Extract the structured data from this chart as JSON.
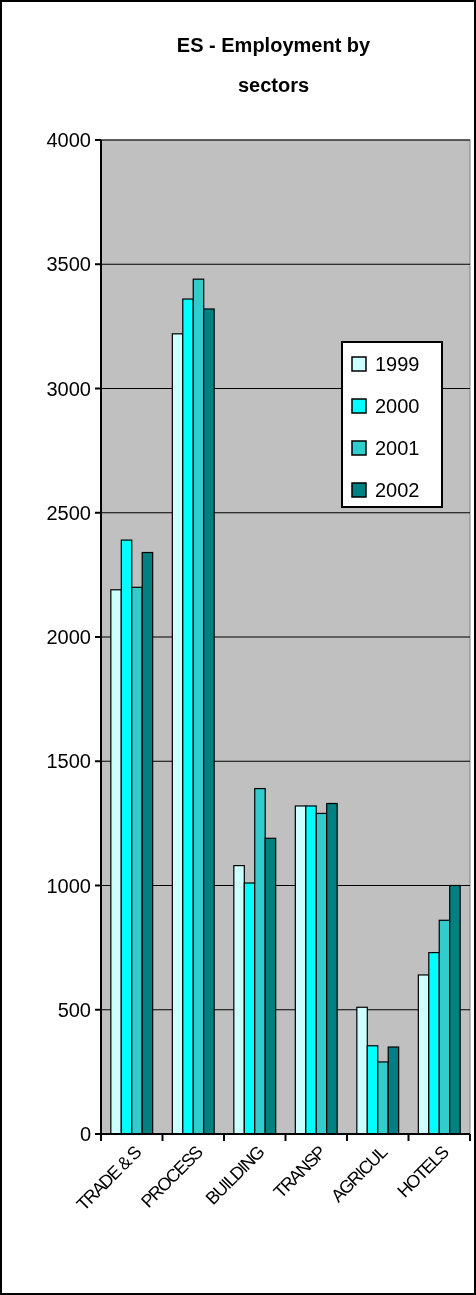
{
  "chart_data": {
    "type": "bar",
    "title": "ES - Employment by sectors",
    "categories": [
      "TRADE & S",
      "PROCESS",
      "BUILDING",
      "TRANSP",
      "AGRICUL",
      "HOTELS"
    ],
    "series": [
      {
        "name": "1999",
        "color": "#ccffff",
        "values": [
          2190,
          3220,
          1080,
          1320,
          510,
          640
        ]
      },
      {
        "name": "2000",
        "color": "#00ffff",
        "values": [
          2390,
          3360,
          1010,
          1320,
          355,
          730
        ]
      },
      {
        "name": "2001",
        "color": "#33cccc",
        "values": [
          2200,
          3440,
          1390,
          1290,
          290,
          860
        ]
      },
      {
        "name": "2002",
        "color": "#008080",
        "values": [
          2340,
          3320,
          1190,
          1330,
          350,
          1000
        ]
      }
    ],
    "ylim": [
      0,
      4000
    ],
    "yticks": [
      0,
      500,
      1000,
      1500,
      2000,
      2500,
      3000,
      3500,
      4000
    ],
    "grid": "y",
    "legend": "right"
  }
}
